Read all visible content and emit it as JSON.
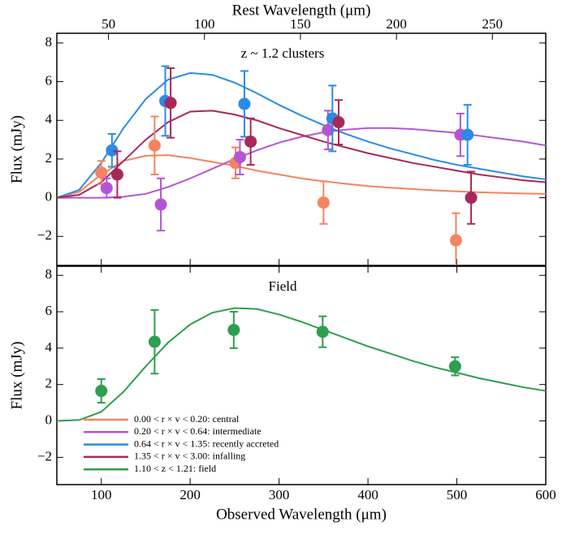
{
  "chart_data": [
    {
      "type": "scatter",
      "title": "z ~ 1.2 clusters",
      "ylabel": "Flux (mJy)",
      "x2label": "Rest Wavelength (μm)",
      "xlim": [
        50,
        600
      ],
      "xticks": [
        100,
        200,
        300,
        400,
        500,
        600
      ],
      "x2lim": [
        23.1,
        277.8
      ],
      "x2ticks": [
        50,
        100,
        150,
        200,
        250
      ],
      "ylim": [
        -3.5,
        8.5
      ],
      "yticks": [
        {
          "value": -2,
          "label": "−2"
        },
        0,
        2,
        4,
        6,
        8
      ],
      "curve_x": [
        50,
        75,
        100,
        125,
        150,
        175,
        200,
        225,
        250,
        275,
        300,
        325,
        350,
        375,
        400,
        425,
        450,
        475,
        500,
        525,
        550,
        575,
        600
      ],
      "series": [
        {
          "color": "#f4845f",
          "x": [
            100,
            160,
            251,
            350,
            499
          ],
          "values": [
            1.3,
            2.7,
            1.8,
            -0.25,
            -2.2
          ],
          "errors": [
            0.6,
            1.5,
            0.8,
            1.1,
            1.4
          ],
          "curve": [
            0,
            0.3,
            1.2,
            1.9,
            2.17,
            2.2,
            2.05,
            1.85,
            1.65,
            1.4,
            1.2,
            1.0,
            0.85,
            0.72,
            0.6,
            0.52,
            0.45,
            0.38,
            0.33,
            0.28,
            0.25,
            0.22,
            0.2
          ]
        },
        {
          "color": "#b455d6",
          "x": [
            106,
            167,
            256,
            355,
            504
          ],
          "values": [
            0.5,
            -0.35,
            2.1,
            3.5,
            3.25
          ],
          "errors": [
            0.5,
            1.35,
            0.9,
            1.0,
            1.1
          ],
          "curve": [
            0,
            0,
            0,
            0.05,
            0.2,
            0.55,
            1.0,
            1.5,
            2.0,
            2.45,
            2.85,
            3.15,
            3.38,
            3.52,
            3.6,
            3.6,
            3.55,
            3.45,
            3.35,
            3.2,
            3.05,
            2.9,
            2.7
          ]
        },
        {
          "color": "#2b8be6",
          "x": [
            112,
            172,
            261,
            360,
            512
          ],
          "values": [
            2.45,
            5.0,
            4.85,
            4.1,
            3.25
          ],
          "errors": [
            0.85,
            1.8,
            1.7,
            1.7,
            1.55
          ],
          "curve": [
            0,
            0.4,
            1.8,
            3.6,
            5.1,
            6.1,
            6.45,
            6.35,
            5.95,
            5.4,
            4.8,
            4.25,
            3.75,
            3.3,
            2.9,
            2.55,
            2.25,
            1.95,
            1.7,
            1.5,
            1.3,
            1.1,
            0.95
          ]
        },
        {
          "color": "#a8285a",
          "x": [
            118,
            178,
            268,
            367,
            516
          ],
          "values": [
            1.2,
            4.9,
            2.9,
            3.9,
            0.0
          ],
          "errors": [
            1.2,
            1.8,
            1.2,
            1.15,
            1.35
          ],
          "curve": [
            0,
            0.15,
            0.8,
            1.9,
            3.0,
            3.9,
            4.45,
            4.5,
            4.3,
            4.0,
            3.6,
            3.25,
            2.9,
            2.6,
            2.3,
            2.05,
            1.8,
            1.6,
            1.4,
            1.2,
            1.05,
            0.9,
            0.8
          ]
        }
      ]
    },
    {
      "type": "scatter",
      "title": "Field",
      "ylabel": "Flux (mJy)",
      "xlabel": "Observed Wavelength (μm)",
      "xlim": [
        50,
        600
      ],
      "xticks": [
        100,
        200,
        300,
        400,
        500,
        600
      ],
      "ylim": [
        -3.5,
        8.5
      ],
      "yticks": [
        {
          "value": -2,
          "label": "−2"
        },
        0,
        2,
        4,
        6,
        8
      ],
      "curve_x": [
        50,
        75,
        100,
        125,
        150,
        175,
        200,
        225,
        250,
        275,
        300,
        325,
        350,
        375,
        400,
        425,
        450,
        475,
        500,
        525,
        550,
        575,
        600
      ],
      "series": [
        {
          "color": "#2e9e4f",
          "x": [
            100,
            160,
            249,
            349,
            498
          ],
          "values": [
            1.65,
            4.35,
            5.0,
            4.9,
            3.0
          ],
          "errors": [
            0.65,
            1.75,
            1.0,
            0.85,
            0.5
          ],
          "curve": [
            0,
            0.05,
            0.5,
            1.6,
            3.0,
            4.3,
            5.3,
            5.95,
            6.2,
            6.15,
            5.85,
            5.45,
            5.0,
            4.55,
            4.1,
            3.7,
            3.3,
            2.95,
            2.65,
            2.35,
            2.1,
            1.85,
            1.65
          ]
        }
      ],
      "legend": [
        {
          "name": "0.00 < r × v < 0.20: central",
          "color": "#f4845f"
        },
        {
          "name": "0.20 < r × v < 0.64: intermediate",
          "color": "#b455d6"
        },
        {
          "name": "0.64 < r × v < 1.35: recently accreted",
          "color": "#2b8be6"
        },
        {
          "name": "1.35 < r × v < 3.00: infalling",
          "color": "#a8285a"
        },
        {
          "name": "1.10 < z < 1.21: field",
          "color": "#2e9e4f"
        }
      ]
    }
  ]
}
